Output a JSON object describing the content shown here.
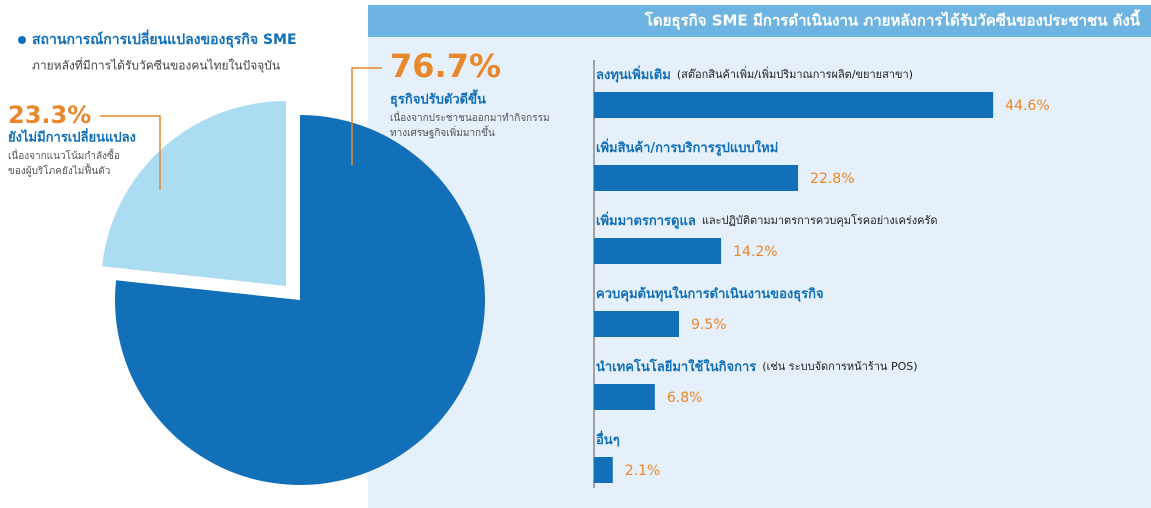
{
  "chart_data": [
    {
      "type": "pie",
      "title": "สถานการณ์การเปลี่ยนแปลงของธุรกิจ SME",
      "subtitle": "ภายหลังที่มีการได้รับวัคซีนของคนไทยในปัจจุบัน",
      "categories": [
        "ธุรกิจปรับตัวดีขึ้น",
        "ยังไม่มีการเปลี่ยนแปลง"
      ],
      "values": [
        76.7,
        23.3
      ],
      "value_labels": [
        "76.7%",
        "23.3%"
      ],
      "descriptions": [
        [
          "เนื่องจากประชาชนออกมาทำกิจกรรม",
          "ทางเศรษฐกิจเพิ่มมากขึ้น"
        ],
        [
          "เนื่องจากแนวโน้มกำลังซื้อ",
          "ของผู้บริโภคยังไม่ฟื้นตัว"
        ]
      ],
      "colors": [
        "#1270b9",
        "#acdcf2"
      ]
    },
    {
      "type": "bar",
      "title": "โดยธุรกิจ SME มีการดำเนินงาน ภายหลังการได้รับวัคซีนของประชาชน ดังนี้",
      "categories": [
        "ลงทุนเพิ่มเติม",
        "เพิ่มสินค้า/การบริการรูปแบบใหม่",
        "เพิ่มมาตรการดูแล",
        "ควบคุมต้นทุนในการดำเนินงานของธุรกิจ",
        "นำเทคโนโลยีมาใช้ในกิจการ",
        "อื่นๆ"
      ],
      "category_notes": [
        "(สต๊อกสินค้าเพิ่ม/เพิ่มปริมาณการผลิต/ขยายสาขา)",
        null,
        "และปฏิบัติตามมาตรการควบคุมโรคอย่างเคร่งครัด",
        null,
        "(เช่น ระบบจัดการหน้าร้าน POS)",
        null
      ],
      "values": [
        44.6,
        22.8,
        14.2,
        9.5,
        6.8,
        2.1
      ],
      "value_labels": [
        "44.6%",
        "22.8%",
        "14.2%",
        "9.5%",
        "6.8%",
        "2.1%"
      ],
      "color": "#1270b9"
    }
  ]
}
